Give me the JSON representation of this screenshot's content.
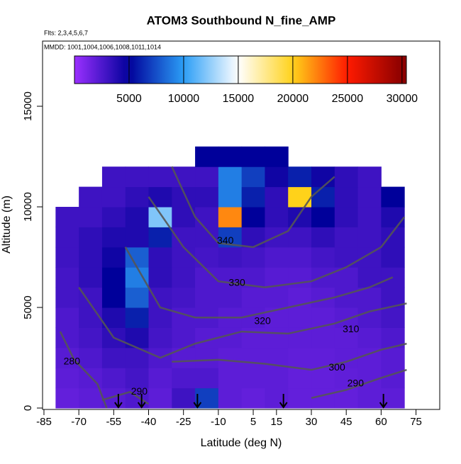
{
  "chart_data": {
    "type": "heatmap",
    "title": "ATOM3 Southbound N_fine_AMP",
    "annotations": [
      "Flts: 2,3,4,5,6,7",
      "MMDD: 1001,1004,1006,1008,1011,1014"
    ],
    "x_label": "Latitude (deg N)",
    "y_label": "Altitude (m)",
    "xlim": [
      -85.6,
      85.2
    ],
    "xticks": [
      -85,
      -70,
      -55,
      -40,
      -25,
      -10,
      5,
      15,
      30,
      45,
      60,
      75
    ],
    "ylim": [
      0,
      18240
    ],
    "yticks": [
      0,
      5000,
      10000,
      15000
    ],
    "clim": [
      0,
      30400
    ],
    "cticks": [
      5000,
      10000,
      15000,
      20000,
      25000,
      30000
    ],
    "colorscale": [
      [
        0,
        "#9b30ff"
      ],
      [
        5000,
        "#00009a"
      ],
      [
        10000,
        "#2b9ef6"
      ],
      [
        15000,
        "#ffffff"
      ],
      [
        20000,
        "#ffd21a"
      ],
      [
        25000,
        "#ff1a00"
      ],
      [
        30000,
        "#8b0000"
      ]
    ],
    "x_edges": [
      -80,
      -70,
      -60,
      -50,
      -40,
      -30,
      -20,
      -10,
      0,
      10,
      20,
      30,
      40,
      50,
      60,
      70
    ],
    "y_edges": [
      0,
      1000,
      2000,
      3000,
      4000,
      5000,
      6000,
      7000,
      8000,
      9000,
      10000,
      11000,
      12000,
      13000
    ],
    "values": [
      [
        1800,
        2000,
        2200,
        2500,
        2000,
        3000,
        7000,
        2000,
        1800,
        2000,
        1800,
        1800,
        1800,
        2000,
        2000
      ],
      [
        2000,
        2200,
        2500,
        2800,
        2200,
        2500,
        2500,
        2000,
        2000,
        2000,
        1800,
        1800,
        1900,
        2000,
        2200
      ],
      [
        2200,
        2500,
        3000,
        3000,
        2500,
        2200,
        2200,
        2000,
        2000,
        2000,
        1900,
        1900,
        2000,
        2000,
        2200
      ],
      [
        2500,
        2800,
        3500,
        4000,
        2800,
        2500,
        2200,
        2200,
        2000,
        2000,
        2000,
        2000,
        2000,
        2200,
        2500
      ],
      [
        2500,
        3000,
        4000,
        6000,
        3000,
        2500,
        2500,
        2200,
        2200,
        2000,
        2000,
        2000,
        2200,
        2500,
        2800
      ],
      [
        2800,
        3000,
        5000,
        8000,
        3000,
        2800,
        2500,
        2500,
        2200,
        2200,
        2000,
        2200,
        2500,
        2500,
        3000
      ],
      [
        2800,
        3500,
        5000,
        9000,
        3500,
        3000,
        2500,
        2500,
        2500,
        2200,
        2200,
        2500,
        2500,
        3000,
        3000
      ],
      [
        3000,
        3500,
        4500,
        8000,
        3500,
        3000,
        2800,
        3000,
        2800,
        2500,
        2500,
        2800,
        3000,
        3000,
        3500
      ],
      [
        3000,
        3500,
        4000,
        4000,
        6000,
        3000,
        3000,
        7000,
        3500,
        3000,
        3000,
        3500,
        3000,
        3000,
        3500
      ],
      [
        3000,
        3000,
        3500,
        4000,
        12000,
        3500,
        3000,
        22000,
        5000,
        3500,
        4000,
        5000,
        3500,
        3000,
        4000
      ],
      [
        null,
        3000,
        3000,
        3500,
        4000,
        3500,
        3500,
        9000,
        6000,
        3500,
        20000,
        6000,
        3500,
        3000,
        5000
      ],
      [
        null,
        null,
        3000,
        3000,
        3000,
        3000,
        3000,
        9000,
        7000,
        4500,
        6000,
        4500,
        3500,
        3000,
        null
      ],
      [
        null,
        null,
        null,
        null,
        null,
        null,
        5000,
        5000,
        5000,
        5000,
        null,
        null,
        null,
        null,
        null
      ]
    ],
    "contour_color": "#555555",
    "contours": [
      {
        "level": 280,
        "x": [
          -78,
          -72,
          -62,
          -58
        ],
        "y": [
          3800,
          2400,
          1200,
          0
        ],
        "label_x": -73,
        "label_y": 2300
      },
      {
        "level": 290,
        "x": [
          -60,
          -48,
          -40
        ],
        "y": [
          400,
          800,
          200
        ],
        "label_x": -44,
        "label_y": 800
      },
      {
        "level": 290,
        "x": [
          30,
          45,
          60,
          71
        ],
        "y": [
          500,
          900,
          1500,
          1900
        ],
        "label_x": 49,
        "label_y": 1200
      },
      {
        "level": 300,
        "x": [
          -30,
          -10,
          10,
          30,
          45,
          60,
          71
        ],
        "y": [
          2300,
          2400,
          2200,
          1900,
          2300,
          2900,
          3200
        ],
        "label_x": 41,
        "label_y": 2000
      },
      {
        "level": 310,
        "x": [
          -70,
          -55,
          -35,
          -20,
          0,
          20,
          40,
          55,
          71
        ],
        "y": [
          6000,
          3500,
          2500,
          3200,
          3800,
          3700,
          4200,
          4800,
          5200
        ],
        "label_x": 47,
        "label_y": 3900
      },
      {
        "level": 320,
        "x": [
          -50,
          -35,
          -20,
          0,
          20,
          40,
          55,
          65
        ],
        "y": [
          8000,
          5000,
          4500,
          4500,
          5000,
          5500,
          6000,
          6500
        ],
        "label_x": 9,
        "label_y": 4300
      },
      {
        "level": 330,
        "x": [
          -40,
          -25,
          -10,
          10,
          30,
          45,
          60,
          70
        ],
        "y": [
          10500,
          8000,
          6300,
          6000,
          6300,
          7000,
          8000,
          9500
        ],
        "label_x": -2,
        "label_y": 6200
      },
      {
        "level": 340,
        "x": [
          -30,
          -20,
          -10,
          5,
          20,
          30,
          40
        ],
        "y": [
          12000,
          9500,
          8200,
          8000,
          8800,
          10500,
          11500
        ],
        "label_x": -7,
        "label_y": 8300
      }
    ],
    "arrows_x": [
      -53,
      -43,
      -19,
      18,
      61
    ]
  }
}
